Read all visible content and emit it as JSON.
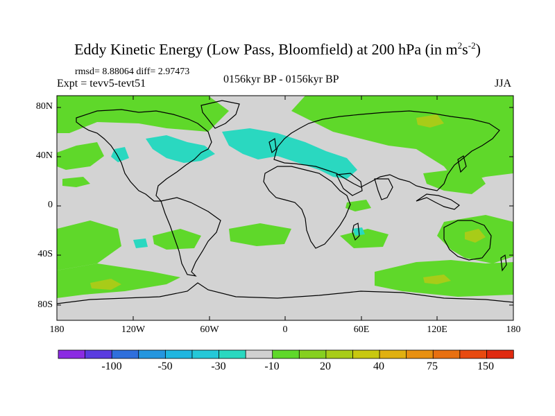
{
  "title": {
    "text": "Eddy Kinetic Energy (Low Pass, Bloomfield) at 200 hPa (in m",
    "sup1": "2",
    "mid": "s",
    "sup2": "-2",
    "end": ")"
  },
  "stats": "rmsd= 8.88064 diff= 2.97473",
  "experiment": "Expt = tevv5-tevt51",
  "period": "0156kyr BP - 0156kyr BP",
  "season": "JJA",
  "lat_labels": [
    "80N",
    "40N",
    "0",
    "40S",
    "80S"
  ],
  "lon_labels": [
    "180",
    "120W",
    "60W",
    "0",
    "60E",
    "120E",
    "180"
  ],
  "colorbar": {
    "labels": [
      "-100",
      "-50",
      "-30",
      "-10",
      "20",
      "40",
      "75",
      "150"
    ],
    "colors": [
      "#8b2be2",
      "#5a3ce0",
      "#2f6fdc",
      "#2496df",
      "#1fb6e0",
      "#25c8d8",
      "#2ad8c0",
      "#d0d0d0",
      "#5fd82a",
      "#86d020",
      "#a8cc18",
      "#c8c810",
      "#e0b010",
      "#e89010",
      "#e87010",
      "#e84a10",
      "#e02a10"
    ]
  },
  "map_colors": {
    "background": "#d3d3d3",
    "positive_low": "#5fd82a",
    "positive_mid": "#a8cc18",
    "negative_low": "#2ad8c0",
    "coast": "#000000"
  }
}
